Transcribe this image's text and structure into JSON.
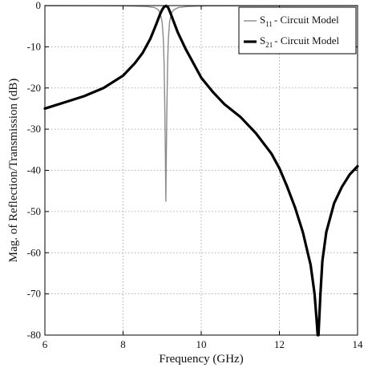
{
  "chart_data": {
    "type": "line",
    "xlabel": "Frequency (GHz)",
    "ylabel": "Mag. of Reflection/Transmission (dB)",
    "xlim": [
      6,
      14
    ],
    "ylim": [
      -80,
      0
    ],
    "xticks": [
      "6",
      "8",
      "10",
      "12",
      "14"
    ],
    "yticks": [
      "0",
      "-10",
      "-20",
      "-30",
      "-40",
      "-50",
      "-60",
      "-70",
      "-80"
    ],
    "grid": true,
    "legend_position": "top-right",
    "series": [
      {
        "name": "S11 - Circuit Model",
        "legend_main": "S",
        "legend_sub": "11",
        "legend_rest": "- Circuit Model",
        "color": "#8a8a8a",
        "style": "thin",
        "points": [
          [
            6.0,
            -0.02
          ],
          [
            8.0,
            -0.05
          ],
          [
            8.6,
            -0.2
          ],
          [
            8.8,
            -0.45
          ],
          [
            8.9,
            -1.0
          ],
          [
            8.95,
            -1.8
          ],
          [
            9.0,
            -4.0
          ],
          [
            9.03,
            -8.0
          ],
          [
            9.05,
            -14.0
          ],
          [
            9.07,
            -26.0
          ],
          [
            9.085,
            -38.0
          ],
          [
            9.095,
            -47.5
          ],
          [
            9.105,
            -38.0
          ],
          [
            9.12,
            -26.0
          ],
          [
            9.14,
            -14.0
          ],
          [
            9.16,
            -8.0
          ],
          [
            9.19,
            -4.0
          ],
          [
            9.24,
            -1.8
          ],
          [
            9.3,
            -1.0
          ],
          [
            9.42,
            -0.45
          ],
          [
            9.65,
            -0.2
          ],
          [
            10.2,
            -0.05
          ],
          [
            14.0,
            -0.02
          ]
        ]
      },
      {
        "name": "S21 - Circuit Model",
        "legend_main": "S",
        "legend_sub": "21",
        "legend_rest": "- Circuit Model",
        "color": "#000000",
        "style": "thick",
        "points": [
          [
            6.0,
            -25.0
          ],
          [
            6.5,
            -23.5
          ],
          [
            7.0,
            -22.0
          ],
          [
            7.5,
            -20.0
          ],
          [
            8.0,
            -17.0
          ],
          [
            8.3,
            -14.0
          ],
          [
            8.5,
            -11.5
          ],
          [
            8.7,
            -8.0
          ],
          [
            8.85,
            -4.5
          ],
          [
            8.95,
            -2.0
          ],
          [
            9.0,
            -1.0
          ],
          [
            9.05,
            -0.3
          ],
          [
            9.1,
            -0.05
          ],
          [
            9.15,
            -0.4
          ],
          [
            9.2,
            -1.5
          ],
          [
            9.3,
            -4.0
          ],
          [
            9.4,
            -6.5
          ],
          [
            9.6,
            -10.5
          ],
          [
            9.8,
            -14.0
          ],
          [
            10.0,
            -17.5
          ],
          [
            10.3,
            -21.0
          ],
          [
            10.6,
            -24.0
          ],
          [
            11.0,
            -27.0
          ],
          [
            11.4,
            -31.0
          ],
          [
            11.8,
            -36.0
          ],
          [
            12.0,
            -39.5
          ],
          [
            12.2,
            -44.0
          ],
          [
            12.4,
            -49.0
          ],
          [
            12.6,
            -55.0
          ],
          [
            12.8,
            -63.0
          ],
          [
            12.9,
            -70.0
          ],
          [
            12.95,
            -76.0
          ],
          [
            12.98,
            -80.0
          ],
          [
            13.0,
            -80.0
          ],
          [
            13.02,
            -76.0
          ],
          [
            13.05,
            -70.0
          ],
          [
            13.1,
            -62.0
          ],
          [
            13.2,
            -55.0
          ],
          [
            13.4,
            -48.0
          ],
          [
            13.6,
            -44.0
          ],
          [
            13.8,
            -41.0
          ],
          [
            14.0,
            -39.0
          ]
        ]
      }
    ]
  }
}
